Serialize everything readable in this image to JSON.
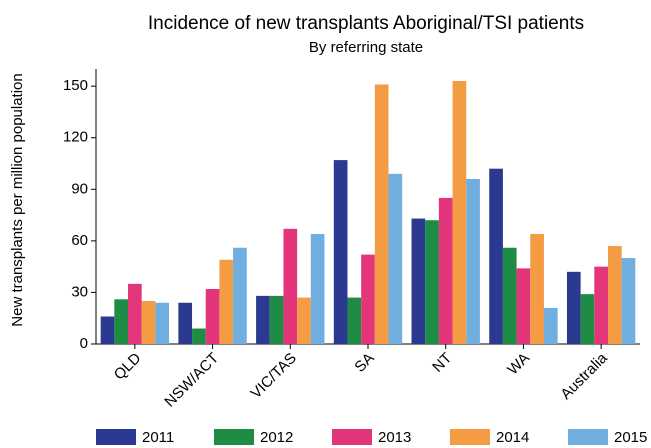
{
  "chart_data": {
    "type": "bar",
    "title": "Incidence of new transplants Aboriginal/TSI patients",
    "subtitle": "By referring state",
    "y_label": "New transplants per million population",
    "categories": [
      "QLD",
      "NSW/ACT",
      "VIC/TAS",
      "SA",
      "NT",
      "WA",
      "Australia"
    ],
    "series": [
      {
        "name": "2011",
        "color": "#2b3990",
        "values": [
          16,
          24,
          28,
          107,
          73,
          102,
          42
        ]
      },
      {
        "name": "2012",
        "color": "#1e8c45",
        "values": [
          26,
          9,
          28,
          27,
          72,
          56,
          29
        ]
      },
      {
        "name": "2013",
        "color": "#e2357a",
        "values": [
          35,
          32,
          67,
          52,
          85,
          44,
          45
        ]
      },
      {
        "name": "2014",
        "color": "#f49c44",
        "values": [
          25,
          49,
          27,
          151,
          153,
          64,
          57
        ]
      },
      {
        "name": "2015",
        "color": "#70aee0",
        "values": [
          24,
          56,
          64,
          99,
          96,
          21,
          50
        ]
      }
    ],
    "ylim": [
      0,
      160
    ],
    "yticks": [
      0,
      30,
      60,
      90,
      120,
      150
    ],
    "grid": false
  }
}
